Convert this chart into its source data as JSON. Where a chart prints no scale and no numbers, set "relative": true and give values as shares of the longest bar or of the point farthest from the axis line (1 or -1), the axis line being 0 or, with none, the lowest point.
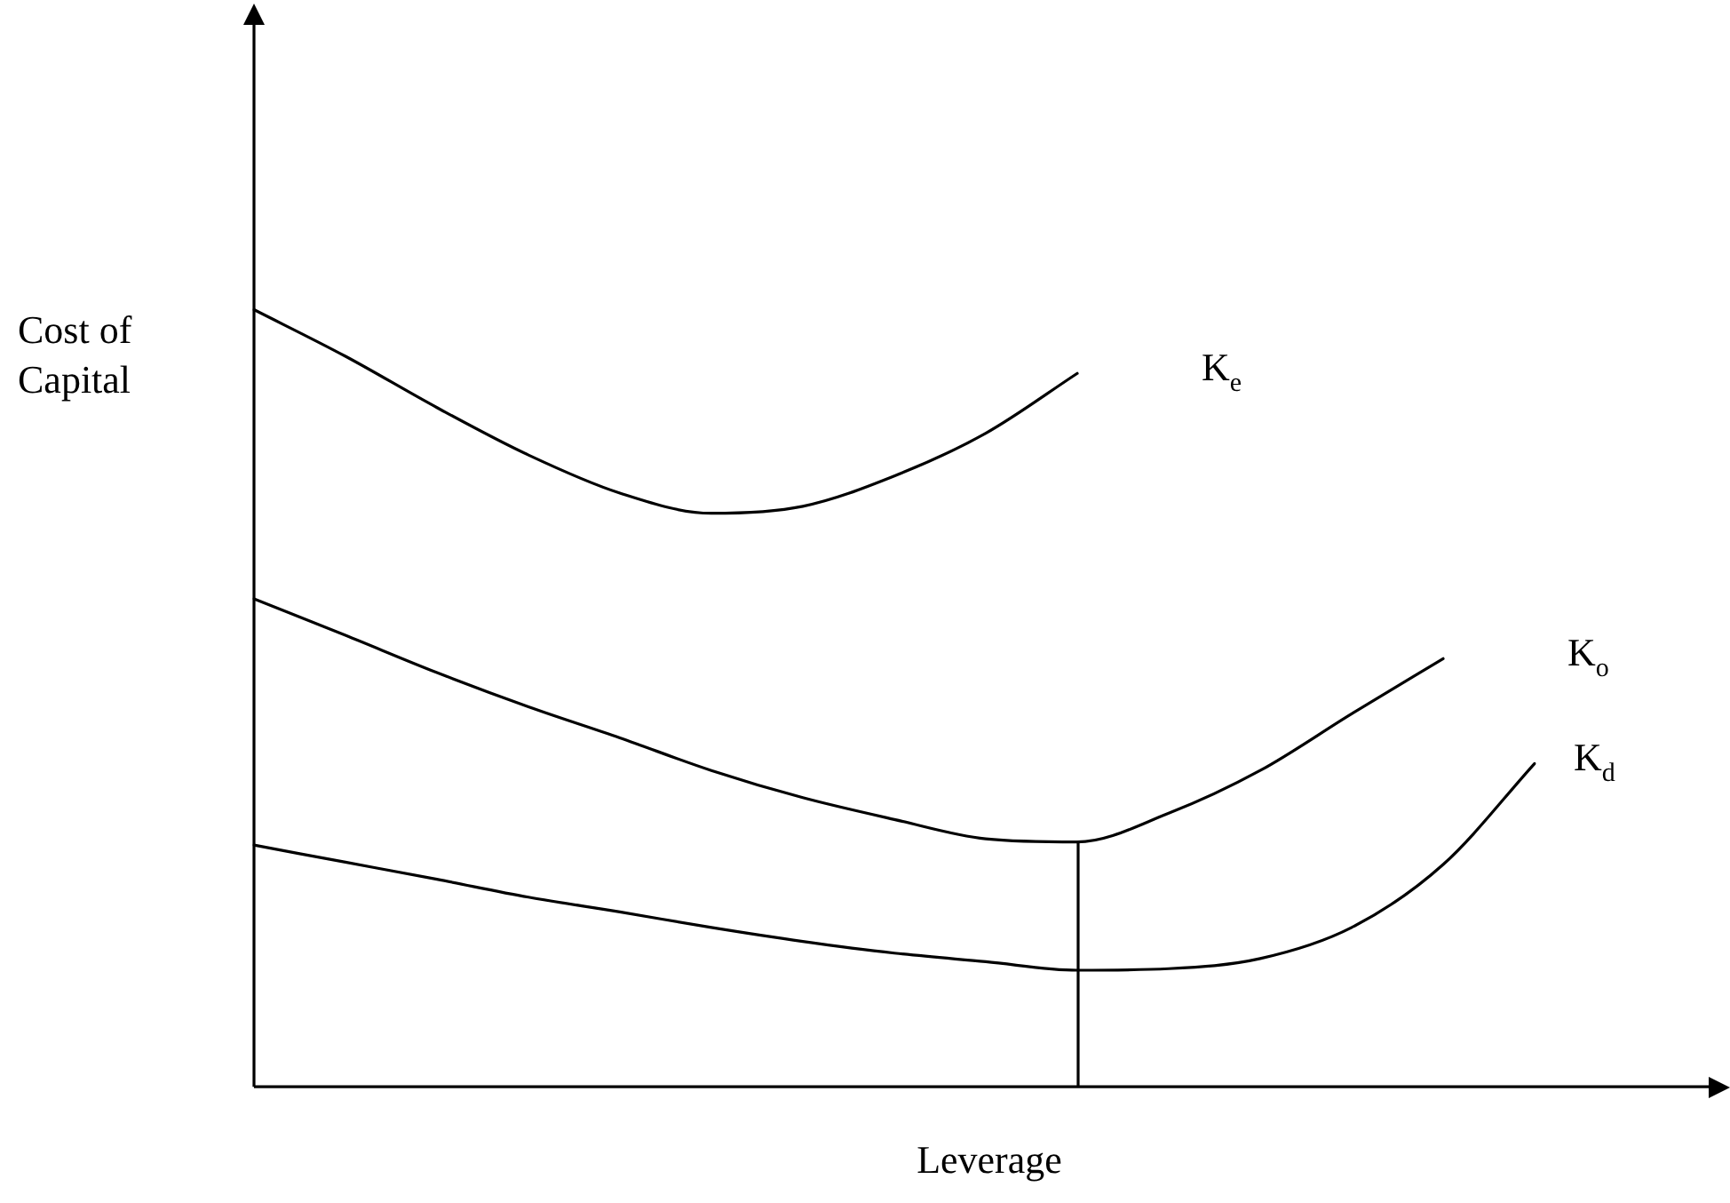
{
  "chart_data": {
    "type": "line",
    "relative": true,
    "xlabel": "Leverage",
    "ylabel": "Cost of Capital",
    "categories": [
      null,
      null,
      null,
      null,
      null,
      null,
      null,
      null,
      null,
      null,
      null,
      null,
      null,
      null,
      null
    ],
    "grid": false,
    "legend": false,
    "marker": "none",
    "line_style": "solid",
    "series": [
      {
        "name": "K$_{e}$",
        "color": "#000000",
        "values": [
          1,
          0.94,
          0.874,
          0.813,
          0.764,
          0.738,
          0.747,
          0.786,
          0.841,
          0.918,
          null,
          null,
          null,
          null,
          null
        ]
      },
      {
        "name": "K$_{o}$",
        "color": "#000000",
        "values": [
          0.628,
          0.581,
          0.533,
          0.489,
          0.449,
          0.407,
          0.372,
          0.344,
          0.319,
          0.315,
          0.352,
          0.407,
          0.48,
          0.551,
          null
        ]
      },
      {
        "name": "K$_{d}$",
        "color": "#000000",
        "values": [
          0.311,
          0.289,
          0.267,
          0.244,
          0.225,
          0.205,
          0.187,
          0.172,
          0.161,
          0.15,
          0.152,
          0.165,
          0.205,
          0.286,
          0.416
        ]
      }
    ]
  }
}
